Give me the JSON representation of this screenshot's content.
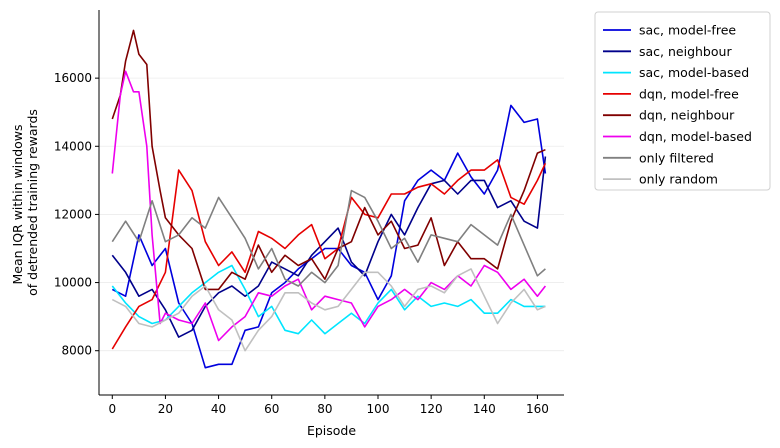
{
  "chart_data": {
    "type": "line",
    "xlabel": "Episode",
    "ylabel_lines": [
      "Mean IQR within windows",
      "of detrended training rewards"
    ],
    "xlim": [
      -5,
      170
    ],
    "ylim": [
      6700,
      18000
    ],
    "xticks": [
      0,
      20,
      40,
      60,
      80,
      100,
      120,
      140,
      160
    ],
    "yticks": [
      8000,
      10000,
      12000,
      14000,
      16000
    ],
    "grid": "horizontal-light",
    "legend_position": "outside-right",
    "series": [
      {
        "name": "sac, model-free",
        "color": "#0000dd",
        "x": [
          0,
          5,
          10,
          15,
          20,
          25,
          30,
          35,
          40,
          45,
          50,
          55,
          60,
          65,
          70,
          75,
          80,
          85,
          90,
          95,
          100,
          105,
          110,
          115,
          120,
          125,
          130,
          135,
          140,
          145,
          150,
          155,
          160,
          163
        ],
        "y": [
          9800,
          9600,
          11400,
          10500,
          11000,
          9400,
          8800,
          7500,
          7600,
          7600,
          8600,
          8700,
          9700,
          10000,
          10400,
          10700,
          11000,
          11000,
          10500,
          10300,
          9500,
          10200,
          12400,
          13000,
          13300,
          13000,
          13800,
          13100,
          12600,
          13300,
          15200,
          14700,
          14800,
          13200
        ]
      },
      {
        "name": "sac, neighbour",
        "color": "#00008b",
        "x": [
          0,
          5,
          10,
          15,
          20,
          25,
          30,
          35,
          40,
          45,
          50,
          55,
          60,
          65,
          70,
          75,
          80,
          85,
          90,
          95,
          100,
          105,
          110,
          115,
          120,
          125,
          130,
          135,
          140,
          145,
          150,
          155,
          160,
          163
        ],
        "y": [
          10800,
          10300,
          9600,
          9800,
          9200,
          8400,
          8600,
          9300,
          9700,
          9900,
          9600,
          9900,
          10600,
          10400,
          10200,
          10800,
          11200,
          11600,
          10600,
          10200,
          11200,
          12000,
          11400,
          12200,
          12900,
          13000,
          12600,
          13000,
          13000,
          12200,
          12400,
          11800,
          11600,
          13700
        ]
      },
      {
        "name": "sac, model-based",
        "color": "#00e5ff",
        "x": [
          0,
          5,
          10,
          15,
          20,
          25,
          30,
          35,
          40,
          45,
          50,
          55,
          60,
          65,
          70,
          75,
          80,
          85,
          90,
          95,
          100,
          105,
          110,
          115,
          120,
          125,
          130,
          135,
          140,
          145,
          150,
          155,
          160,
          163
        ],
        "y": [
          9900,
          9400,
          9000,
          8800,
          8900,
          9300,
          9700,
          10000,
          10300,
          10500,
          9800,
          9000,
          9300,
          8600,
          8500,
          8900,
          8500,
          8800,
          9100,
          8800,
          9400,
          9800,
          9200,
          9600,
          9300,
          9400,
          9300,
          9500,
          9100,
          9100,
          9500,
          9300,
          9300,
          9300
        ]
      },
      {
        "name": "dqn, model-free",
        "color": "#e60000",
        "x": [
          0,
          5,
          10,
          15,
          20,
          25,
          30,
          35,
          40,
          45,
          50,
          55,
          60,
          65,
          70,
          75,
          80,
          85,
          90,
          95,
          100,
          105,
          110,
          115,
          120,
          125,
          130,
          135,
          140,
          145,
          150,
          155,
          160,
          163
        ],
        "y": [
          8050,
          8700,
          9300,
          9500,
          10300,
          13300,
          12700,
          11200,
          10500,
          10900,
          10300,
          11500,
          11300,
          11000,
          11400,
          11700,
          10700,
          11000,
          12500,
          12000,
          11900,
          12600,
          12600,
          12800,
          12900,
          12600,
          13000,
          13300,
          13300,
          13600,
          12500,
          12300,
          13000,
          13500
        ]
      },
      {
        "name": "dqn, neighbour",
        "color": "#800000",
        "x": [
          0,
          3,
          5,
          8,
          10,
          13,
          15,
          18,
          20,
          25,
          30,
          35,
          40,
          45,
          50,
          55,
          60,
          65,
          70,
          75,
          80,
          85,
          90,
          95,
          100,
          105,
          110,
          115,
          120,
          125,
          130,
          135,
          140,
          145,
          150,
          155,
          160,
          163
        ],
        "y": [
          14800,
          15500,
          16500,
          17400,
          16700,
          16400,
          14000,
          12700,
          11900,
          11400,
          11000,
          9800,
          9800,
          10300,
          10100,
          11100,
          10300,
          10800,
          10500,
          10700,
          10100,
          11000,
          11200,
          12200,
          11400,
          11800,
          11000,
          11100,
          11900,
          10500,
          11200,
          10700,
          10700,
          10400,
          11800,
          12700,
          13800,
          13900
        ]
      },
      {
        "name": "dqn, model-based",
        "color": "#ee00ee",
        "x": [
          0,
          3,
          5,
          8,
          10,
          13,
          15,
          18,
          20,
          25,
          30,
          35,
          40,
          45,
          50,
          55,
          60,
          65,
          70,
          75,
          80,
          85,
          90,
          95,
          100,
          105,
          110,
          115,
          120,
          125,
          130,
          135,
          140,
          145,
          150,
          155,
          160,
          163
        ],
        "y": [
          13200,
          15500,
          16200,
          15600,
          15600,
          14000,
          11400,
          8800,
          9100,
          8900,
          8800,
          9400,
          8300,
          8700,
          9000,
          9700,
          9600,
          9900,
          10100,
          9200,
          9600,
          9500,
          9400,
          8700,
          9300,
          9500,
          9800,
          9500,
          10000,
          9800,
          10200,
          9900,
          10500,
          10300,
          9800,
          10100,
          9600,
          9900
        ]
      },
      {
        "name": "only filtered",
        "color": "#808080",
        "x": [
          0,
          5,
          10,
          15,
          20,
          25,
          30,
          35,
          40,
          45,
          50,
          55,
          60,
          65,
          70,
          75,
          80,
          85,
          90,
          95,
          100,
          105,
          110,
          115,
          120,
          125,
          130,
          135,
          140,
          145,
          150,
          155,
          160,
          163
        ],
        "y": [
          11200,
          11800,
          11200,
          12400,
          11200,
          11400,
          11900,
          11600,
          12500,
          11900,
          11300,
          10400,
          11000,
          10100,
          9900,
          10300,
          10000,
          10500,
          12700,
          12500,
          11800,
          11000,
          11300,
          10600,
          11400,
          11300,
          11200,
          11700,
          11400,
          11100,
          12000,
          11100,
          10200,
          10400
        ]
      },
      {
        "name": "only random",
        "color": "#c0c0c0",
        "x": [
          0,
          5,
          10,
          15,
          20,
          25,
          30,
          35,
          40,
          45,
          50,
          55,
          60,
          65,
          70,
          75,
          80,
          85,
          90,
          95,
          100,
          105,
          110,
          115,
          120,
          125,
          130,
          135,
          140,
          145,
          150,
          155,
          160,
          163
        ],
        "y": [
          9500,
          9300,
          8800,
          8700,
          8900,
          9100,
          9600,
          9900,
          9200,
          8900,
          8000,
          8600,
          9000,
          9700,
          9700,
          9400,
          9200,
          9300,
          9800,
          10300,
          10300,
          9900,
          9300,
          9800,
          9900,
          9700,
          10200,
          10400,
          9600,
          8800,
          9400,
          9800,
          9200,
          9300
        ]
      }
    ]
  }
}
